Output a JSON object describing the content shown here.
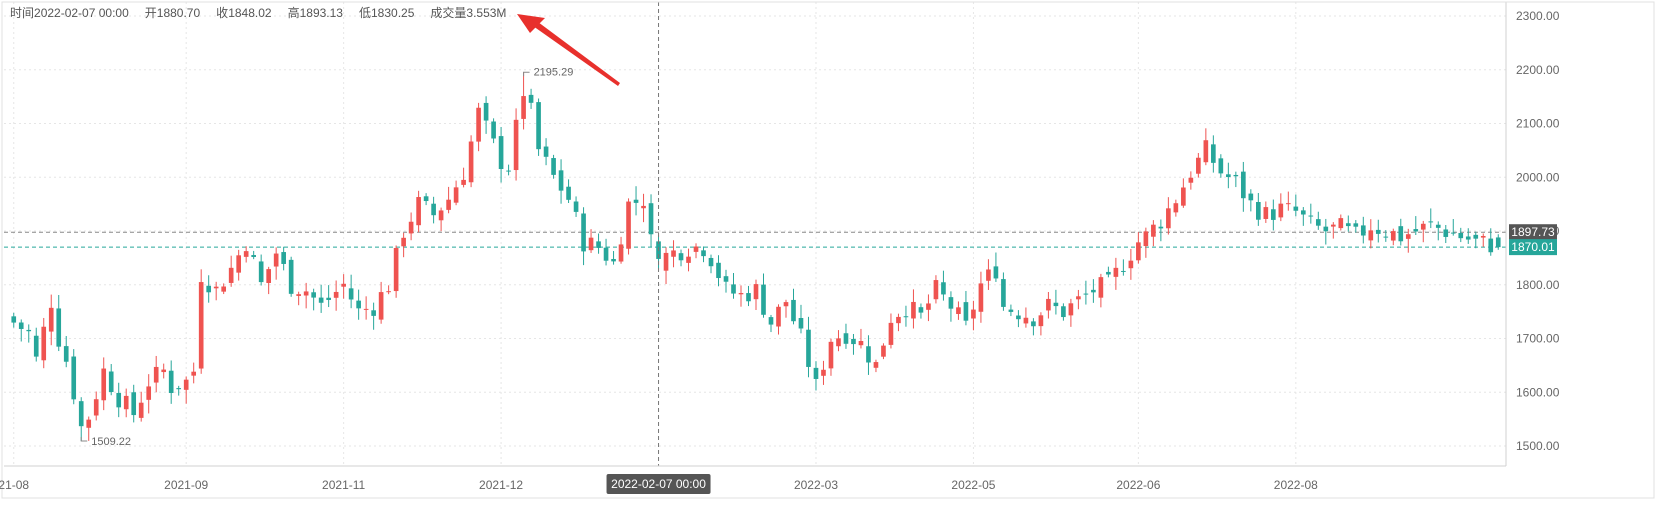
{
  "info": {
    "time_label": "时间",
    "time": "2022-02-07 00:00",
    "open_label": "开",
    "open": "1880.70",
    "close_label": "收",
    "close": "1848.02",
    "high_label": "高",
    "high": "1893.13",
    "low_label": "低",
    "low": "1830.25",
    "volume_label": "成交量",
    "volume": "3.553M"
  },
  "colors": {
    "up": "#ef5350",
    "down": "#26a69a",
    "grid": "#e6e6e6",
    "crosshair": "#777777",
    "arrow": "#e8302c",
    "price_line_gray": "#888888",
    "price_line_teal": "#26a69a"
  },
  "crosshair": {
    "time_label": "2022-02-07 00:00",
    "price_label": "1897.73",
    "price": 1897.73
  },
  "last_price": {
    "label": "1870.01",
    "value": 1870.01
  },
  "chart_data": {
    "type": "candlestick",
    "ylim": [
      1450,
      2310
    ],
    "y_ticks": [
      "1500.00",
      "1600.00",
      "1700.00",
      "1800.00",
      "1900.00",
      "2000.00",
      "2100.00",
      "2200.00",
      "2300.00"
    ],
    "x_ticks": [
      {
        "label": "21-08",
        "index": 0
      },
      {
        "label": "2021-09",
        "index": 23
      },
      {
        "label": "2021-11",
        "index": 44
      },
      {
        "label": "2021-12",
        "index": 65
      },
      {
        "label": "2022-03",
        "index": 107
      },
      {
        "label": "2022-05",
        "index": 128
      },
      {
        "label": "2022-06",
        "index": 150
      },
      {
        "label": "2022-08",
        "index": 171
      }
    ],
    "crosshair_index": 86,
    "max_annotation": {
      "label": "2195.29",
      "index": 68,
      "value": 2195.29
    },
    "min_annotation": {
      "label": "1509.22",
      "index": 9,
      "value": 1509.22
    }
  }
}
